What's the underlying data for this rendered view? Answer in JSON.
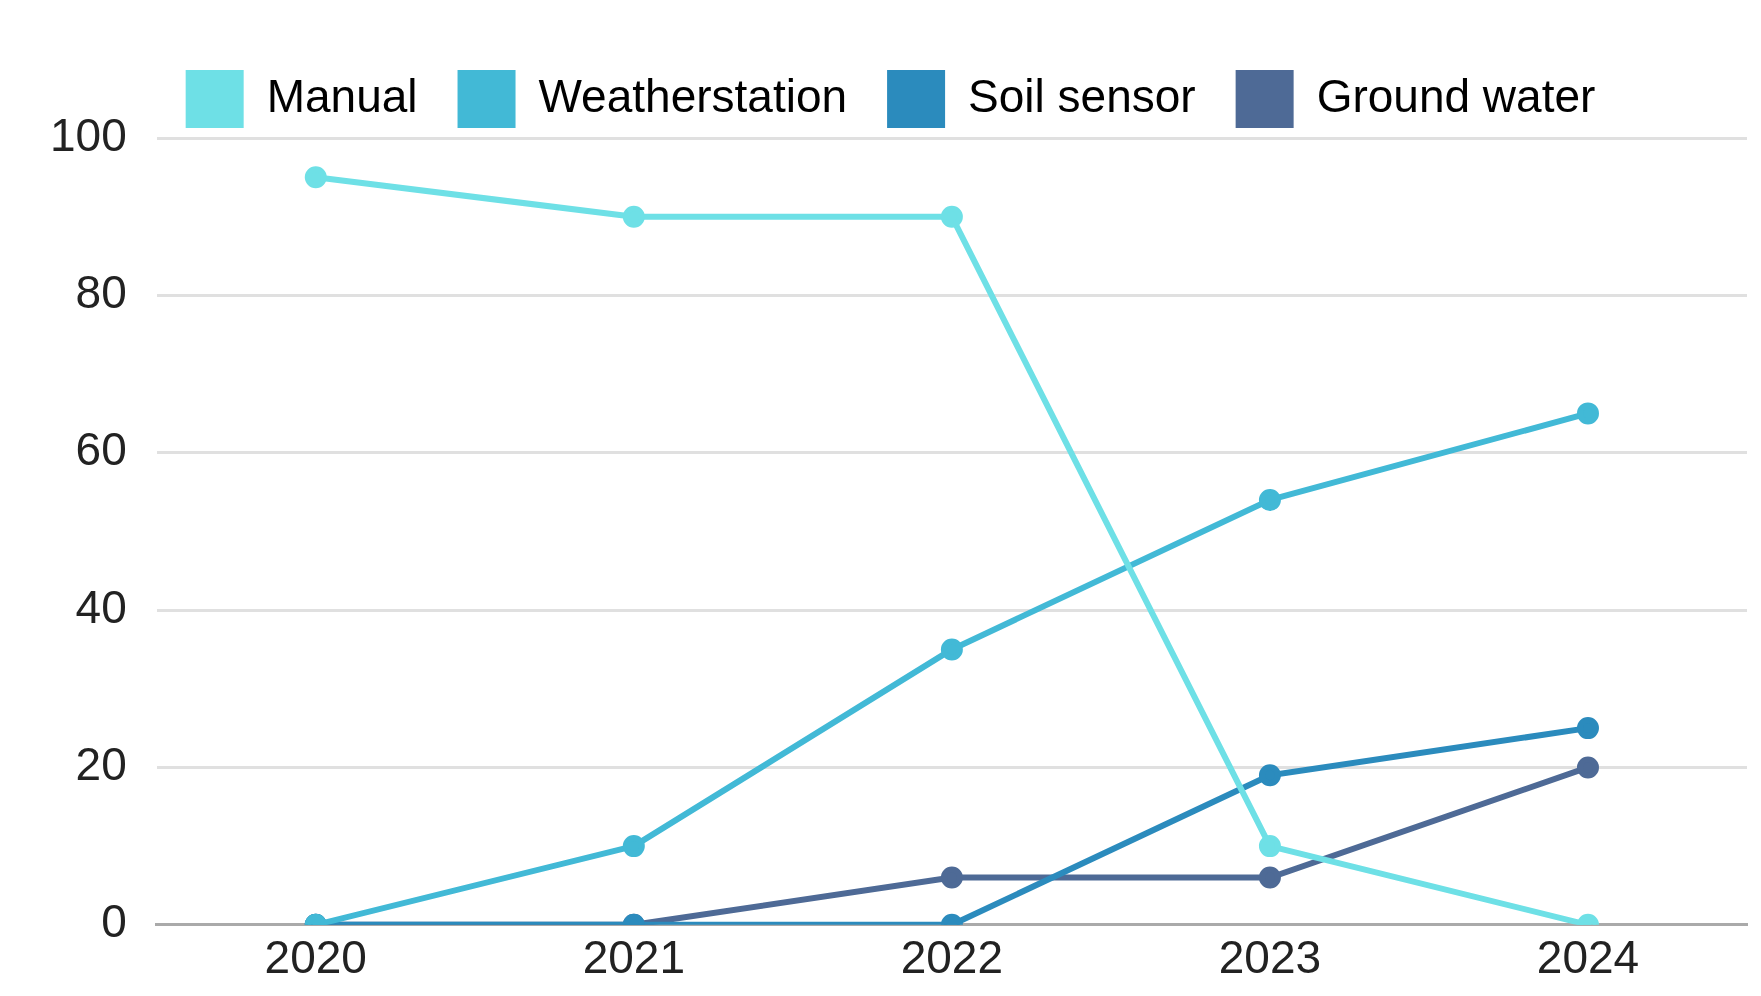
{
  "chart_data": {
    "type": "line",
    "categories": [
      "2020",
      "2021",
      "2022",
      "2023",
      "2024"
    ],
    "series": [
      {
        "name": "Manual",
        "color": "#6ee0e6",
        "values": [
          95,
          90,
          90,
          10,
          0
        ]
      },
      {
        "name": "Weatherstation",
        "color": "#42b9d6",
        "values": [
          0,
          10,
          35,
          54,
          65
        ]
      },
      {
        "name": "Soil sensor",
        "color": "#2b8bbd",
        "values": [
          0,
          0,
          0,
          19,
          25
        ]
      },
      {
        "name": "Ground water",
        "color": "#4e6a96",
        "values": [
          0,
          0,
          6,
          6,
          20
        ]
      }
    ],
    "ylim": [
      0,
      100
    ],
    "yticks": [
      0,
      20,
      40,
      60,
      80,
      100
    ],
    "grid": "y",
    "legend": "top",
    "marker": "circle",
    "line_style": "solid"
  }
}
